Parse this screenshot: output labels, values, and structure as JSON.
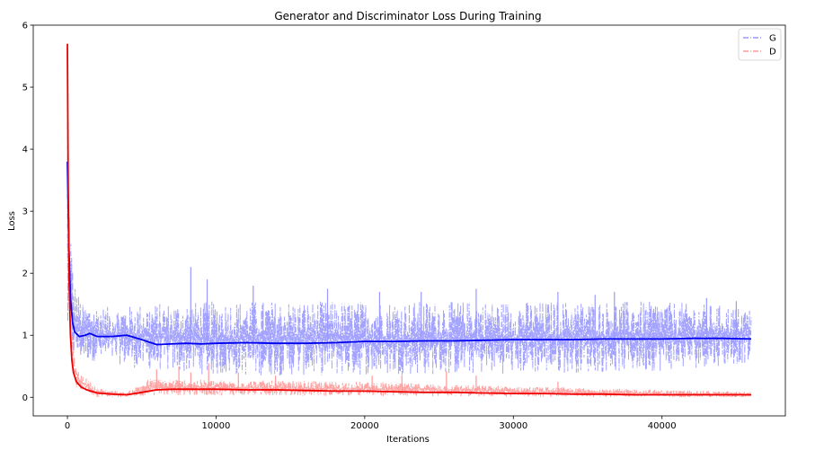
{
  "chart_data": {
    "type": "line",
    "title": "Generator and Discriminator Loss During Training",
    "xlabel": "Iterations",
    "ylabel": "Loss",
    "xlim": [
      -2300,
      48300
    ],
    "ylim": [
      -0.3,
      6.0
    ],
    "x_ticks": [
      0,
      10000,
      20000,
      30000,
      40000
    ],
    "x_tick_labels": [
      "0",
      "10000",
      "20000",
      "30000",
      "40000"
    ],
    "y_ticks": [
      0,
      1,
      2,
      3,
      4,
      5,
      6
    ],
    "y_tick_labels": [
      "0",
      "1",
      "2",
      "3",
      "4",
      "5",
      "6"
    ],
    "grid": false,
    "legend_position": "top-right",
    "x_max": 46000,
    "series": [
      {
        "name": "G",
        "raw_color": "#9999ff",
        "smooth_color": "#0000ee",
        "raw_linestyle": "dash-dot",
        "smooth_points": [
          [
            0,
            3.8
          ],
          [
            100,
            2.4
          ],
          [
            200,
            1.6
          ],
          [
            350,
            1.2
          ],
          [
            500,
            1.05
          ],
          [
            800,
            0.98
          ],
          [
            1200,
            1.0
          ],
          [
            1500,
            1.03
          ],
          [
            2000,
            0.98
          ],
          [
            3000,
            0.98
          ],
          [
            4000,
            1.0
          ],
          [
            5000,
            0.93
          ],
          [
            6000,
            0.85
          ],
          [
            7000,
            0.86
          ],
          [
            8000,
            0.87
          ],
          [
            9000,
            0.86
          ],
          [
            10000,
            0.87
          ],
          [
            12000,
            0.88
          ],
          [
            14000,
            0.87
          ],
          [
            16000,
            0.87
          ],
          [
            18000,
            0.88
          ],
          [
            20000,
            0.9
          ],
          [
            22000,
            0.9
          ],
          [
            24000,
            0.91
          ],
          [
            26000,
            0.91
          ],
          [
            28000,
            0.92
          ],
          [
            30000,
            0.93
          ],
          [
            32000,
            0.93
          ],
          [
            34000,
            0.93
          ],
          [
            36000,
            0.94
          ],
          [
            38000,
            0.94
          ],
          [
            40000,
            0.94
          ],
          [
            42000,
            0.95
          ],
          [
            44000,
            0.95
          ],
          [
            46000,
            0.94
          ]
        ],
        "band": [
          [
            0,
            0.8,
            3.8
          ],
          [
            150,
            0.7,
            3.2
          ],
          [
            400,
            0.6,
            1.9
          ],
          [
            1000,
            0.6,
            1.5
          ],
          [
            3000,
            0.55,
            1.45
          ],
          [
            5000,
            0.45,
            1.5
          ],
          [
            10000,
            0.35,
            1.55
          ],
          [
            20000,
            0.35,
            1.55
          ],
          [
            30000,
            0.38,
            1.55
          ],
          [
            40000,
            0.42,
            1.55
          ],
          [
            46000,
            0.55,
            1.45
          ]
        ],
        "spikes": [
          [
            8300,
            2.1
          ],
          [
            9400,
            1.9
          ],
          [
            12500,
            1.8
          ],
          [
            17500,
            1.75
          ],
          [
            21000,
            1.7
          ],
          [
            23800,
            1.7
          ],
          [
            27500,
            1.75
          ],
          [
            33000,
            1.7
          ],
          [
            35500,
            1.65
          ],
          [
            36800,
            1.7
          ],
          [
            43000,
            1.6
          ],
          [
            45000,
            1.55
          ]
        ]
      },
      {
        "name": "D",
        "raw_color": "#ff9999",
        "smooth_color": "#ee0000",
        "raw_linestyle": "dash-dot",
        "smooth_points": [
          [
            0,
            5.7
          ],
          [
            60,
            3.2
          ],
          [
            120,
            1.8
          ],
          [
            200,
            1.0
          ],
          [
            300,
            0.6
          ],
          [
            400,
            0.4
          ],
          [
            600,
            0.25
          ],
          [
            900,
            0.17
          ],
          [
            1300,
            0.12
          ],
          [
            2000,
            0.07
          ],
          [
            3000,
            0.05
          ],
          [
            4000,
            0.04
          ],
          [
            5000,
            0.08
          ],
          [
            6000,
            0.12
          ],
          [
            7000,
            0.13
          ],
          [
            8000,
            0.13
          ],
          [
            10000,
            0.13
          ],
          [
            12000,
            0.12
          ],
          [
            14000,
            0.12
          ],
          [
            16000,
            0.11
          ],
          [
            18000,
            0.1
          ],
          [
            20000,
            0.1
          ],
          [
            22000,
            0.09
          ],
          [
            24000,
            0.08
          ],
          [
            26000,
            0.08
          ],
          [
            28000,
            0.07
          ],
          [
            30000,
            0.06
          ],
          [
            32000,
            0.06
          ],
          [
            34000,
            0.05
          ],
          [
            36000,
            0.05
          ],
          [
            38000,
            0.04
          ],
          [
            40000,
            0.04
          ],
          [
            42000,
            0.04
          ],
          [
            44000,
            0.04
          ],
          [
            46000,
            0.04
          ]
        ],
        "band": [
          [
            0,
            2.0,
            5.7
          ],
          [
            200,
            0.8,
            1.3
          ],
          [
            600,
            0.15,
            0.45
          ],
          [
            2000,
            0.0,
            0.15
          ],
          [
            4000,
            0.0,
            0.08
          ],
          [
            5500,
            0.03,
            0.3
          ],
          [
            10000,
            0.03,
            0.28
          ],
          [
            20000,
            0.02,
            0.25
          ],
          [
            30000,
            0.01,
            0.18
          ],
          [
            40000,
            0.0,
            0.12
          ],
          [
            46000,
            0.0,
            0.09
          ]
        ],
        "spikes": [
          [
            6000,
            0.45
          ],
          [
            7500,
            0.5
          ],
          [
            8300,
            0.4
          ],
          [
            9500,
            0.55
          ],
          [
            11500,
            0.4
          ],
          [
            14000,
            0.35
          ],
          [
            20500,
            0.35
          ],
          [
            22500,
            0.35
          ],
          [
            25500,
            0.42
          ],
          [
            27500,
            0.35
          ],
          [
            33000,
            0.25
          ]
        ]
      }
    ]
  }
}
